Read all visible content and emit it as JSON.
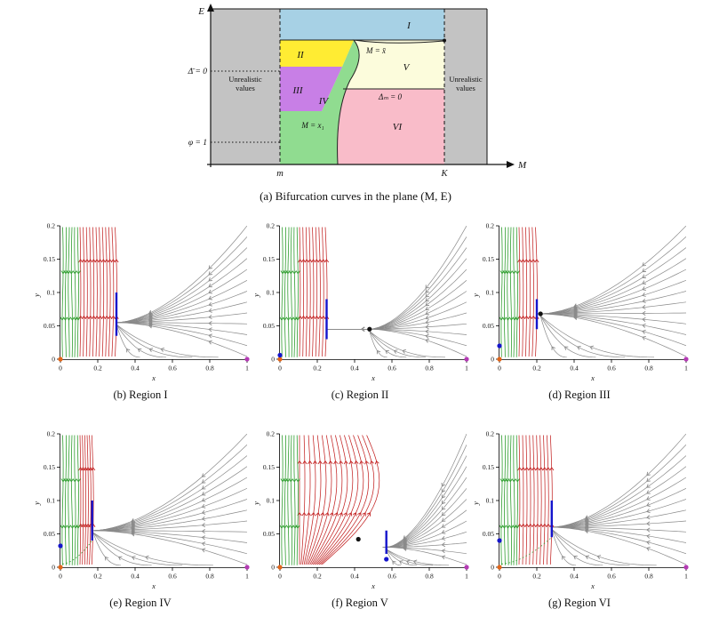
{
  "colors": {
    "gray_flow": "#8a8a8a",
    "red_flow": "#c32323",
    "green_flow": "#2f9e2f",
    "blue": "#1414cc",
    "magenta": "#b43bb4",
    "orange": "#e2661a",
    "black": "#111111"
  },
  "subplot_axes": {
    "xlim": [
      0,
      1
    ],
    "ylim": [
      0,
      0.2
    ],
    "xticks": [
      0,
      0.2,
      0.4,
      0.6,
      0.8,
      1
    ],
    "xtick_labels": [
      "0",
      "0.2",
      "0.4",
      "0.6",
      "0.8",
      "1"
    ],
    "yticks": [
      0,
      0.05,
      0.1,
      0.15,
      0.2
    ],
    "ytick_labels": [
      "0",
      "0.05",
      "0.1",
      "0.15",
      "0.2"
    ],
    "xlabel": "x",
    "ylabel": "y"
  },
  "chart_data": [
    {
      "type": "area",
      "subtype": "bifurcation-region-diagram",
      "caption": "(a) Bifurcation curves in the plane (M, E)",
      "x_axis": "M",
      "y_axis": "E",
      "x_ticks": [
        "m",
        "K"
      ],
      "unrealistic_color": "#c3c3c3",
      "unrealistic_lines": [
        "Unrealistic",
        "values"
      ],
      "regions": [
        {
          "label": "I",
          "color": "#a7d1e5"
        },
        {
          "label": "II",
          "color": "#ffec33"
        },
        {
          "label": "III",
          "color": "#c87fe6"
        },
        {
          "label": "IV",
          "color": "#90dc90"
        },
        {
          "label": "V",
          "color": "#fcfcdc"
        },
        {
          "label": "VI",
          "color": "#f9bcc9"
        }
      ],
      "curves": [
        {
          "label": "M = x̄"
        },
        {
          "label": "Δₘ = 0"
        },
        {
          "label": "M = x₁"
        }
      ],
      "reference_lines": [
        {
          "label": "Δ̄ = 0"
        },
        {
          "label": "φ = 1"
        }
      ]
    },
    {
      "type": "line",
      "subtype": "phase-portrait-streamplot",
      "id": "b",
      "caption": "(b) Region I",
      "green_band": [
        0,
        0.1
      ],
      "red_band": [
        0.1,
        0.3
      ],
      "red_style": "straight",
      "converge": [
        0.3,
        0.055
      ],
      "funnel_y": 0.055,
      "blue_segment": {
        "x": 0.3,
        "y1": 0.035,
        "y2": 0.1
      },
      "green_dashed": false,
      "equilibria": [
        {
          "x": 0,
          "y": 0,
          "color": "orange"
        },
        {
          "x": 1,
          "y": 0,
          "color": "magenta"
        }
      ]
    },
    {
      "type": "line",
      "subtype": "phase-portrait-streamplot",
      "id": "c",
      "caption": "(c) Region II",
      "green_band": [
        0,
        0.1
      ],
      "red_band": [
        0.1,
        0.25
      ],
      "red_style": "straight",
      "converge": [
        0.48,
        0.045
      ],
      "funnel_y": 0.045,
      "blue_segment": {
        "x": 0.25,
        "y1": 0.03,
        "y2": 0.09
      },
      "green_dashed": false,
      "equilibria": [
        {
          "x": 0,
          "y": 0,
          "color": "orange"
        },
        {
          "x": 0,
          "y": 0.006,
          "color": "blue"
        },
        {
          "x": 0.48,
          "y": 0.045,
          "color": "black"
        },
        {
          "x": 1,
          "y": 0,
          "color": "magenta"
        }
      ]
    },
    {
      "type": "line",
      "subtype": "phase-portrait-streamplot",
      "id": "d",
      "caption": "(d) Region III",
      "green_band": [
        0,
        0.1
      ],
      "red_band": [
        0.1,
        0.2
      ],
      "red_style": "straight",
      "converge": [
        0.22,
        0.068
      ],
      "funnel_y": 0.068,
      "blue_segment": {
        "x": 0.2,
        "y1": 0.045,
        "y2": 0.09
      },
      "green_dashed": false,
      "equilibria": [
        {
          "x": 0,
          "y": 0,
          "color": "orange"
        },
        {
          "x": 0,
          "y": 0.02,
          "color": "blue"
        },
        {
          "x": 0.22,
          "y": 0.068,
          "color": "black"
        },
        {
          "x": 1,
          "y": 0,
          "color": "magenta"
        }
      ]
    },
    {
      "type": "line",
      "subtype": "phase-portrait-streamplot",
      "id": "e",
      "caption": "(e) Region IV",
      "green_band": [
        0,
        0.1
      ],
      "red_band": [
        0.1,
        0.175
      ],
      "red_style": "straight",
      "converge": [
        0.175,
        0.055
      ],
      "funnel_y": 0.055,
      "blue_segment": {
        "x": 0.17,
        "y1": 0.04,
        "y2": 0.1
      },
      "green_dashed": true,
      "equilibria": [
        {
          "x": 0,
          "y": 0,
          "color": "orange"
        },
        {
          "x": 0,
          "y": 0.032,
          "color": "blue"
        },
        {
          "x": 1,
          "y": 0,
          "color": "magenta"
        }
      ]
    },
    {
      "type": "line",
      "subtype": "phase-portrait-streamplot",
      "id": "f",
      "caption": "(f) Region V",
      "green_band": [
        0,
        0.1
      ],
      "red_band": [
        0.1,
        0.55
      ],
      "red_style": "fan",
      "converge": [
        0.57,
        0.03
      ],
      "funnel_y": 0.03,
      "blue_segment": {
        "x": 0.57,
        "y1": 0.02,
        "y2": 0.055
      },
      "green_dashed": false,
      "equilibria": [
        {
          "x": 0,
          "y": 0,
          "color": "orange"
        },
        {
          "x": 0.42,
          "y": 0.042,
          "color": "black"
        },
        {
          "x": 0.57,
          "y": 0.012,
          "color": "blue"
        },
        {
          "x": 1,
          "y": 0,
          "color": "magenta"
        }
      ]
    },
    {
      "type": "line",
      "subtype": "phase-portrait-streamplot",
      "id": "g",
      "caption": "(g) Region VI",
      "green_band": [
        0,
        0.1
      ],
      "red_band": [
        0.1,
        0.28
      ],
      "red_style": "straight",
      "converge": [
        0.28,
        0.06
      ],
      "funnel_y": 0.06,
      "blue_segment": {
        "x": 0.28,
        "y1": 0.045,
        "y2": 0.1
      },
      "green_dashed": true,
      "equilibria": [
        {
          "x": 0,
          "y": 0,
          "color": "orange"
        },
        {
          "x": 0,
          "y": 0.04,
          "color": "blue"
        },
        {
          "x": 1,
          "y": 0,
          "color": "magenta"
        }
      ]
    }
  ]
}
